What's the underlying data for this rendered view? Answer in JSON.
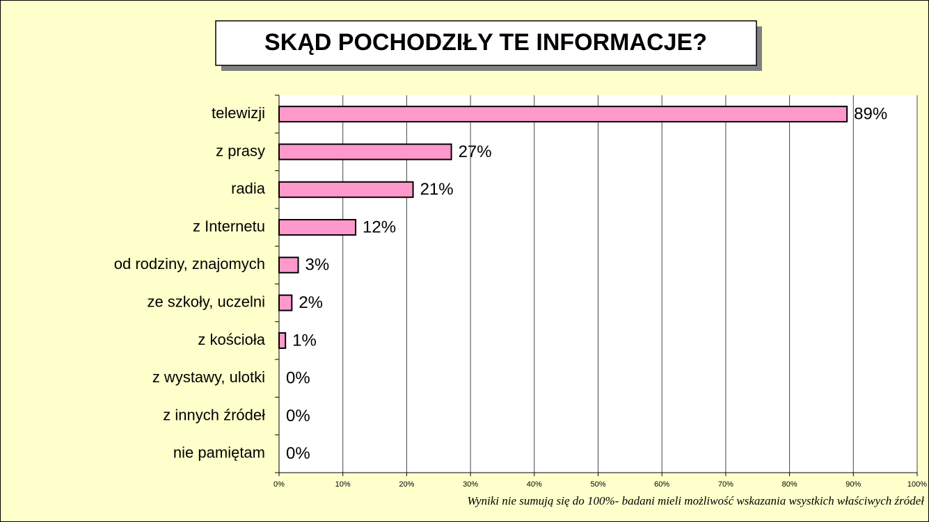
{
  "chart_data": {
    "type": "bar",
    "orientation": "horizontal",
    "title": "SKĄD POCHODZIŁY TE INFORMACJE?",
    "categories": [
      "telewizji",
      "z prasy",
      "radia",
      "z Internetu",
      "od rodziny, znajomych",
      "ze szkoły, uczelni",
      "z kościoła",
      "z wystawy, ulotki",
      "z innych źródeł",
      "nie pamiętam"
    ],
    "values": [
      89,
      27,
      21,
      12,
      3,
      2,
      1,
      0,
      0,
      0
    ],
    "value_labels": [
      "89%",
      "27%",
      "21%",
      "12%",
      "3%",
      "2%",
      "1%",
      "0%",
      "0%",
      "0%"
    ],
    "color": "#ff99cc",
    "xlim": [
      0,
      100
    ],
    "xticks": [
      {
        "value": 0,
        "label": "0%"
      },
      {
        "value": 10,
        "label": "10%"
      },
      {
        "value": 20,
        "label": "20%"
      },
      {
        "value": 30,
        "label": "30%"
      },
      {
        "value": 40,
        "label": "40%"
      },
      {
        "value": 50,
        "label": "50%"
      },
      {
        "value": 60,
        "label": "60%"
      },
      {
        "value": 70,
        "label": "70%"
      },
      {
        "value": 80,
        "label": "80%"
      },
      {
        "value": 90,
        "label": "90%"
      },
      {
        "value": 100,
        "label": "100%"
      }
    ],
    "grid": true,
    "note": "Wyniki nie sumują się do 100%- badani mieli możliwość wskazania wsystkich właściwych źródeł"
  }
}
